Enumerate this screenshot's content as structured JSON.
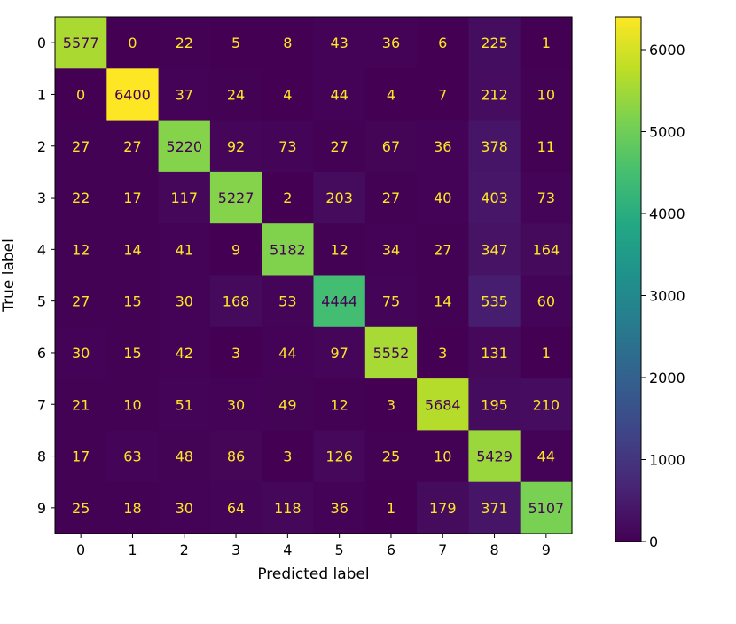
{
  "chart_data": {
    "type": "heatmap",
    "title": "",
    "xlabel": "Predicted label",
    "ylabel": "True label",
    "x_categories": [
      "0",
      "1",
      "2",
      "3",
      "4",
      "5",
      "6",
      "7",
      "8",
      "9"
    ],
    "y_categories": [
      "0",
      "1",
      "2",
      "3",
      "4",
      "5",
      "6",
      "7",
      "8",
      "9"
    ],
    "values": [
      [
        5577,
        0,
        22,
        5,
        8,
        43,
        36,
        6,
        225,
        1
      ],
      [
        0,
        6400,
        37,
        24,
        4,
        44,
        4,
        7,
        212,
        10
      ],
      [
        27,
        27,
        5220,
        92,
        73,
        27,
        67,
        36,
        378,
        11
      ],
      [
        22,
        17,
        117,
        5227,
        2,
        203,
        27,
        40,
        403,
        73
      ],
      [
        12,
        14,
        41,
        9,
        5182,
        12,
        34,
        27,
        347,
        164
      ],
      [
        27,
        15,
        30,
        168,
        53,
        4444,
        75,
        14,
        535,
        60
      ],
      [
        30,
        15,
        42,
        3,
        44,
        97,
        5552,
        3,
        131,
        1
      ],
      [
        21,
        10,
        51,
        30,
        49,
        12,
        3,
        5684,
        195,
        210
      ],
      [
        17,
        63,
        48,
        86,
        3,
        126,
        25,
        10,
        5429,
        44
      ],
      [
        25,
        18,
        30,
        64,
        118,
        36,
        1,
        179,
        371,
        5107
      ]
    ],
    "colormap": "viridis",
    "vmin": 0,
    "vmax": 6400,
    "colorbar_ticks": [
      0,
      1000,
      2000,
      3000,
      4000,
      5000,
      6000
    ],
    "grid": false
  }
}
